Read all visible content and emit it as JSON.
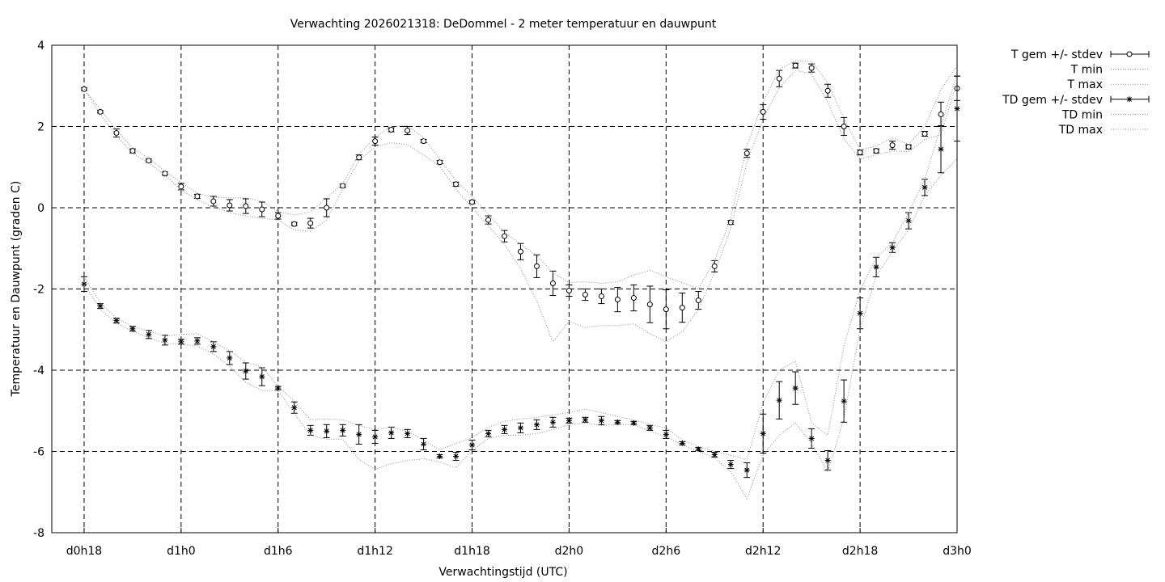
{
  "chart_data": {
    "type": "line",
    "title": "Verwachting 2026021318: DeDommel - 2 meter temperatuur en dauwpunt",
    "xlabel": "Verwachtingstijd (UTC)",
    "ylabel": "Temperatuur en Dauwpunt (graden C)",
    "ylim": [
      -8,
      4
    ],
    "xlim": [
      16,
      72
    ],
    "grid": true,
    "legend_position": "outside-right",
    "x_ticks": [
      {
        "x": 18,
        "label": "d0h18"
      },
      {
        "x": 24,
        "label": "d1h0"
      },
      {
        "x": 30,
        "label": "d1h6"
      },
      {
        "x": 36,
        "label": "d1h12"
      },
      {
        "x": 42,
        "label": "d1h18"
      },
      {
        "x": 48,
        "label": "d2h0"
      },
      {
        "x": 54,
        "label": "d2h6"
      },
      {
        "x": 60,
        "label": "d2h12"
      },
      {
        "x": 66,
        "label": "d2h18"
      },
      {
        "x": 72,
        "label": "d3h0"
      }
    ],
    "y_ticks": [
      "-8",
      "-6",
      "-4",
      "-2",
      "0",
      "2",
      "4"
    ],
    "x": [
      18,
      19,
      20,
      21,
      22,
      23,
      24,
      25,
      26,
      27,
      28,
      29,
      30,
      31,
      32,
      33,
      34,
      35,
      36,
      37,
      38,
      39,
      40,
      41,
      42,
      43,
      44,
      45,
      46,
      47,
      48,
      49,
      50,
      51,
      52,
      53,
      54,
      55,
      56,
      57,
      58,
      59,
      60,
      61,
      62,
      63,
      64,
      65,
      66,
      67,
      68,
      69,
      70,
      71,
      71.5,
      72
    ],
    "series": [
      {
        "name": "T gem +/- stdev",
        "marker": "circle",
        "values": [
          2.92,
          2.36,
          1.84,
          1.4,
          1.16,
          0.84,
          0.52,
          0.28,
          0.16,
          0.06,
          0.04,
          -0.04,
          -0.2,
          -0.4,
          -0.38,
          0.0,
          0.54,
          1.24,
          1.64,
          1.92,
          1.9,
          1.64,
          1.12,
          0.58,
          0.14,
          -0.3,
          -0.7,
          -1.08,
          -1.44,
          -1.86,
          -2.04,
          -2.14,
          -2.18,
          -2.26,
          -2.22,
          -2.38,
          -2.5,
          -2.46,
          -2.28,
          -1.44,
          -0.36,
          1.34,
          2.36,
          3.18,
          3.5,
          3.44,
          2.88,
          2.0,
          1.36,
          1.4,
          1.54,
          1.5,
          1.82,
          2.3,
          null,
          2.94
        ],
        "stdev": [
          0.03,
          0.03,
          0.1,
          0.05,
          0.04,
          0.04,
          0.08,
          0.05,
          0.12,
          0.14,
          0.18,
          0.18,
          0.08,
          0.04,
          0.12,
          0.22,
          0.04,
          0.06,
          0.1,
          0.05,
          0.1,
          0.04,
          0.04,
          0.05,
          0.04,
          0.1,
          0.14,
          0.2,
          0.28,
          0.3,
          0.14,
          0.14,
          0.18,
          0.3,
          0.32,
          0.45,
          0.48,
          0.36,
          0.22,
          0.14,
          0.05,
          0.1,
          0.18,
          0.2,
          0.06,
          0.1,
          0.16,
          0.22,
          0.06,
          0.05,
          0.1,
          0.05,
          0.06,
          0.3,
          null,
          0.3
        ]
      },
      {
        "name": "T min",
        "style": "dotted",
        "values": [
          2.92,
          2.3,
          1.78,
          1.34,
          1.1,
          0.8,
          0.44,
          0.2,
          0.02,
          -0.12,
          -0.2,
          -0.26,
          -0.3,
          -0.55,
          -0.58,
          -0.3,
          0.46,
          1.16,
          1.5,
          1.6,
          1.55,
          1.3,
          1.02,
          0.46,
          0.0,
          -0.44,
          -0.9,
          -1.5,
          -2.3,
          -3.3,
          -2.8,
          -2.95,
          -2.9,
          -2.9,
          -2.86,
          -3.1,
          -3.3,
          -3.05,
          -2.5,
          -1.6,
          -0.5,
          1.1,
          2.2,
          2.95,
          3.38,
          3.3,
          2.6,
          1.7,
          1.2,
          1.3,
          1.4,
          1.38,
          1.68,
          1.8,
          null,
          3.1
        ]
      },
      {
        "name": "T max",
        "style": "dotted",
        "values": [
          2.92,
          2.42,
          1.92,
          1.46,
          1.22,
          0.9,
          0.62,
          0.36,
          0.26,
          0.24,
          0.24,
          0.16,
          -0.1,
          -0.18,
          -0.1,
          0.24,
          0.6,
          1.32,
          1.74,
          2.0,
          2.02,
          1.72,
          1.2,
          0.66,
          0.28,
          -0.16,
          -0.6,
          -0.9,
          -1.18,
          -1.6,
          -1.84,
          -1.82,
          -1.86,
          -1.82,
          -1.66,
          -1.54,
          -1.7,
          -1.84,
          -2.0,
          -1.3,
          -0.26,
          1.52,
          2.6,
          3.4,
          3.62,
          3.6,
          3.08,
          2.2,
          1.42,
          1.52,
          1.72,
          1.56,
          2.0,
          2.9,
          null,
          3.5
        ]
      },
      {
        "name": "TD gem +/- stdev",
        "marker": "star",
        "values": [
          -1.88,
          -2.42,
          -2.78,
          -2.98,
          -3.12,
          -3.26,
          -3.3,
          -3.28,
          -3.42,
          -3.7,
          -4.02,
          -4.16,
          -4.44,
          -4.92,
          -5.48,
          -5.5,
          -5.48,
          -5.58,
          -5.64,
          -5.54,
          -5.56,
          -5.82,
          -6.12,
          -6.12,
          -5.84,
          -5.56,
          -5.46,
          -5.42,
          -5.34,
          -5.28,
          -5.24,
          -5.22,
          -5.24,
          -5.28,
          -5.3,
          -5.42,
          -5.58,
          -5.8,
          -5.94,
          -6.08,
          -6.32,
          -6.46,
          -5.56,
          -4.74,
          -4.44,
          -5.68,
          -6.22,
          -4.76,
          -2.6,
          -1.46,
          -0.98,
          -0.32,
          0.5,
          1.44,
          null,
          2.44
        ],
        "stdev": [
          0.18,
          0.06,
          0.06,
          0.06,
          0.1,
          0.12,
          0.06,
          0.08,
          0.12,
          0.16,
          0.2,
          0.22,
          0.04,
          0.14,
          0.12,
          0.16,
          0.14,
          0.24,
          0.16,
          0.14,
          0.1,
          0.14,
          0.04,
          0.1,
          0.12,
          0.08,
          0.1,
          0.12,
          0.12,
          0.12,
          0.06,
          0.06,
          0.1,
          0.04,
          0.04,
          0.06,
          0.1,
          0.04,
          0.04,
          0.06,
          0.1,
          0.18,
          0.48,
          0.46,
          0.4,
          0.24,
          0.24,
          0.52,
          0.38,
          0.24,
          0.12,
          0.2,
          0.2,
          0.58,
          null,
          0.8
        ]
      },
      {
        "name": "TD min",
        "style": "dotted",
        "values": [
          -1.88,
          -2.5,
          -2.84,
          -3.04,
          -3.2,
          -3.34,
          -3.36,
          -3.4,
          -3.6,
          -3.9,
          -4.3,
          -4.5,
          -4.5,
          -5.06,
          -5.6,
          -5.7,
          -5.7,
          -6.2,
          -6.44,
          -6.3,
          -6.22,
          -6.18,
          -6.26,
          -6.4,
          -5.98,
          -5.68,
          -5.6,
          -5.6,
          -5.56,
          -5.46,
          -5.34,
          -5.3,
          -5.36,
          -5.34,
          -5.34,
          -5.5,
          -5.64,
          -5.84,
          -6.0,
          -6.16,
          -6.5,
          -7.16,
          -6.1,
          -5.6,
          -5.3,
          -5.8,
          -6.5,
          -5.2,
          -2.98,
          -1.68,
          -1.08,
          -0.54,
          0.3,
          0.8,
          null,
          1.2
        ]
      },
      {
        "name": "TD max",
        "style": "dotted",
        "values": [
          -1.7,
          -2.34,
          -2.72,
          -2.92,
          -3.04,
          -3.16,
          -3.12,
          -3.1,
          -3.3,
          -3.52,
          -3.8,
          -3.92,
          -4.4,
          -4.76,
          -5.22,
          -5.2,
          -5.22,
          -5.36,
          -5.46,
          -5.4,
          -5.5,
          -5.72,
          -5.96,
          -5.8,
          -5.66,
          -5.4,
          -5.26,
          -5.2,
          -5.16,
          -5.1,
          -5.04,
          -4.96,
          -5.04,
          -5.14,
          -5.22,
          -5.34,
          -5.42,
          -5.72,
          -5.88,
          -6.0,
          -6.1,
          -6.2,
          -4.8,
          -4.0,
          -3.78,
          -5.3,
          -5.6,
          -3.4,
          -2.04,
          -1.22,
          -0.86,
          -0.12,
          0.7,
          2.0,
          null,
          3.3
        ]
      }
    ]
  }
}
